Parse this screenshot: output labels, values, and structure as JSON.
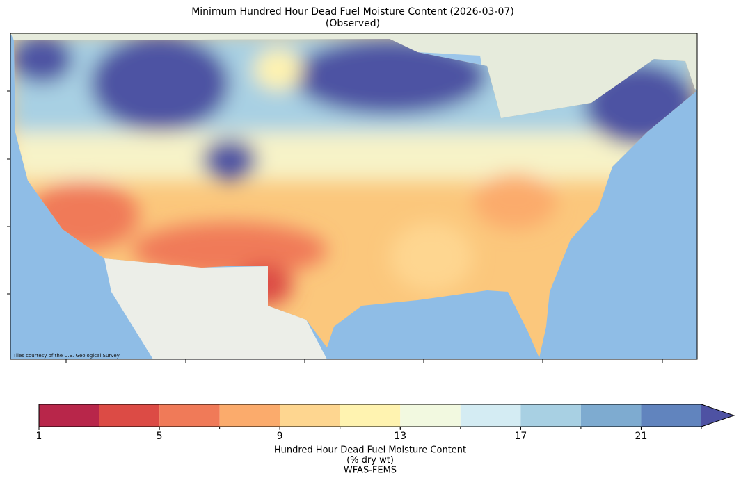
{
  "title": "Minimum Hundred Hour Dead Fuel Moisture Content (2026-03-07)",
  "subtitle": "(Observed)",
  "attribution": "Tiles courtesy of the U.S. Geological Survey",
  "colorbar": {
    "boundaries": [
      1,
      3,
      5,
      7,
      9,
      11,
      13,
      15,
      17,
      19,
      21,
      23
    ],
    "colors": [
      "#b8264a",
      "#dc4b45",
      "#f07a58",
      "#fbab6c",
      "#fed690",
      "#fff3b0",
      "#f2f9e0",
      "#d4ecf3",
      "#a8d0e3",
      "#7eabd0",
      "#6184be"
    ],
    "over_color": "#4e52a3",
    "ticks": [
      1,
      5,
      9,
      13,
      17,
      21
    ],
    "label": [
      "Hundred Hour Dead Fuel Moisture Content",
      "(% dry wt)",
      "WFAS-FEMS"
    ]
  }
}
